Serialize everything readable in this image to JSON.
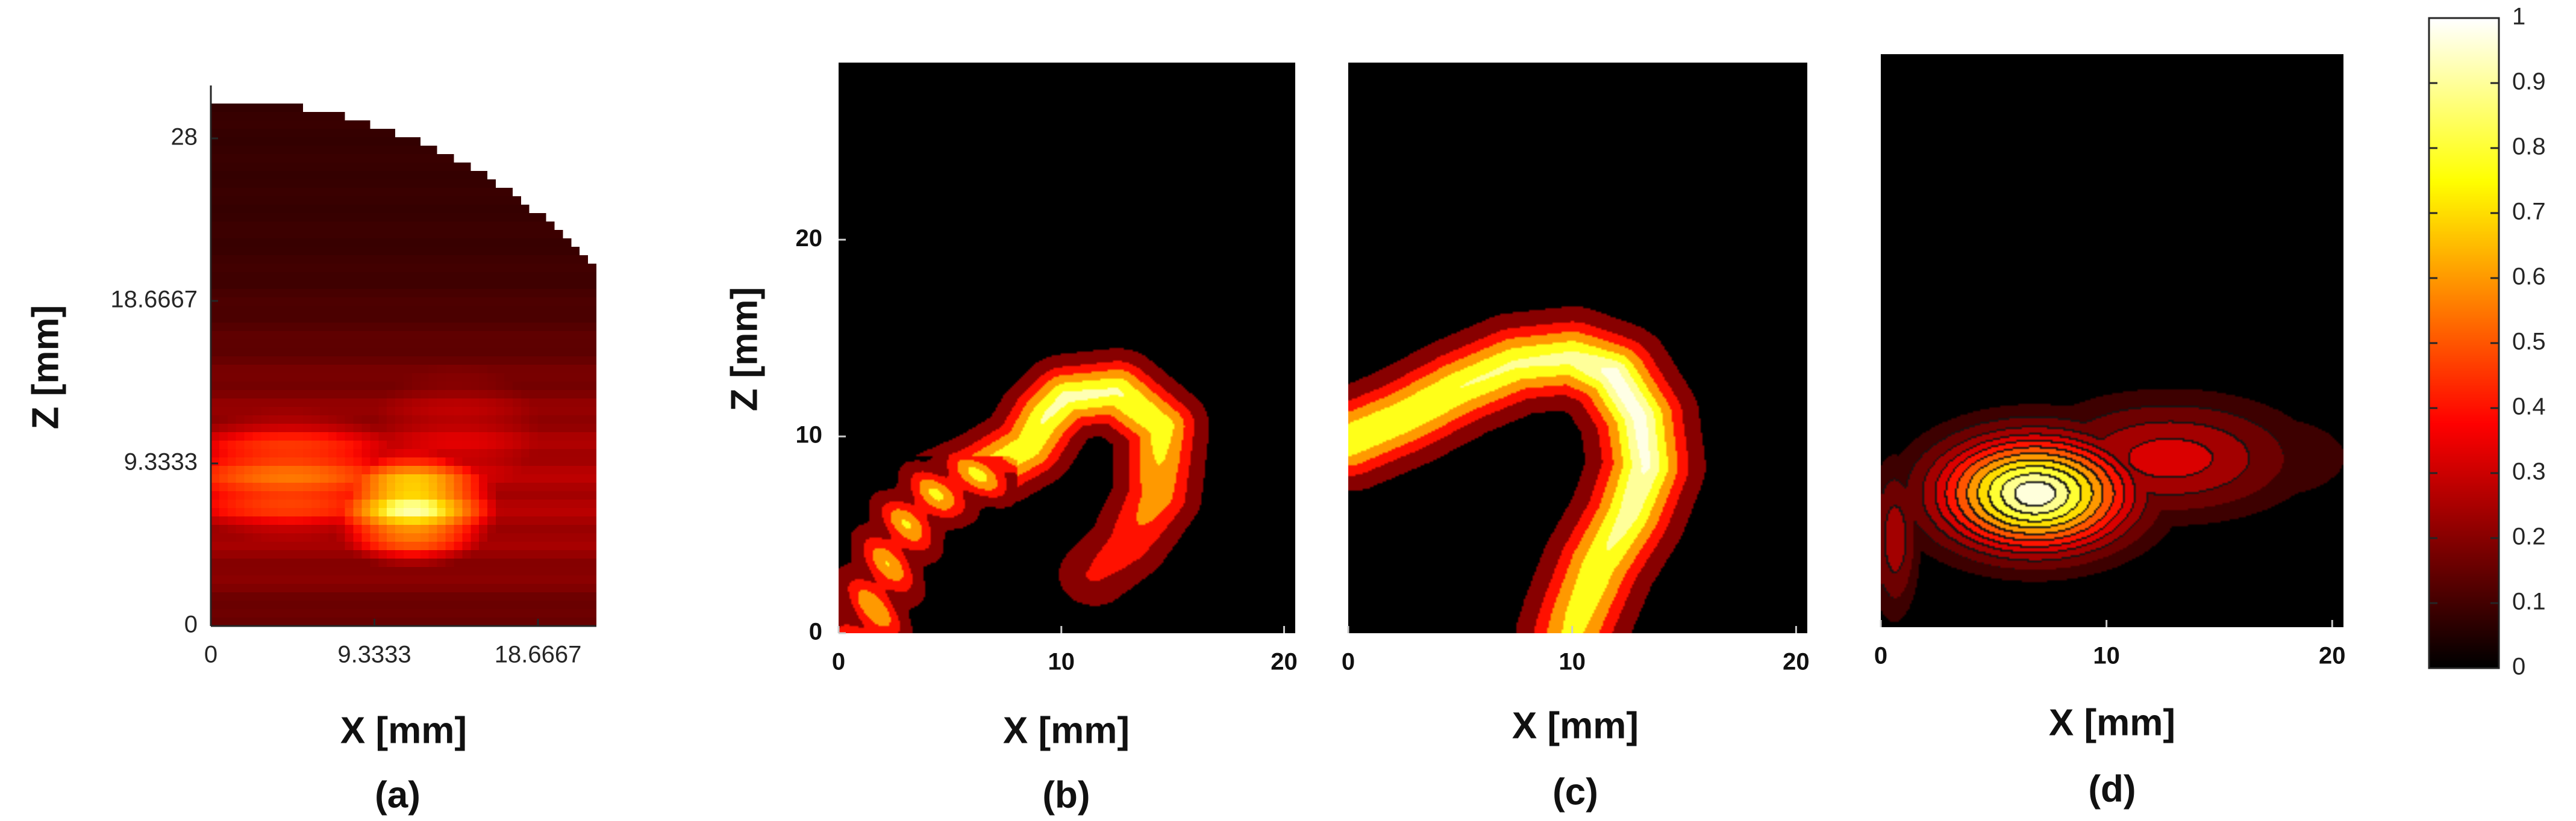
{
  "chart_data": [
    {
      "type": "heatmap",
      "panel_label": "(a)",
      "xlabel": "X [mm]",
      "ylabel": "Z [mm]",
      "xlim": [
        0,
        22
      ],
      "ylim": [
        0,
        30
      ],
      "x_ticks": [
        0,
        9.3333,
        18.6667
      ],
      "x_tick_labels": [
        "0",
        "9.3333",
        "18.6667"
      ],
      "y_ticks": [
        0,
        9.3333,
        18.6667,
        28
      ],
      "y_tick_labels": [
        "0",
        "9.3333",
        "18.6667",
        "28"
      ],
      "boundary_radius": 28,
      "hotspots": [
        {
          "x": 11.5,
          "z": 7,
          "sx": 3.2,
          "sz": 2.2,
          "value": 0.95
        },
        {
          "x": 4.5,
          "z": 8.5,
          "sx": 6,
          "sz": 2.8,
          "value": 0.6
        },
        {
          "x": 14,
          "z": 10,
          "sx": 6,
          "sz": 4,
          "value": 0.35
        }
      ],
      "grid": false,
      "colormap": "hot"
    },
    {
      "type": "heatmap",
      "panel_label": "(b)",
      "xlabel": "X [mm]",
      "ylabel": "Z [mm]",
      "xlim": [
        0,
        20.5
      ],
      "ylim": [
        0,
        29
      ],
      "x_ticks": [
        0,
        10,
        20
      ],
      "x_tick_labels": [
        "0",
        "10",
        "20"
      ],
      "y_ticks": [
        0,
        10,
        20
      ],
      "y_tick_labels": [
        "0",
        "10",
        "20"
      ],
      "path": [
        [
          1.3,
          0
        ],
        [
          2,
          3
        ],
        [
          3,
          5.5
        ],
        [
          4.5,
          7.2
        ],
        [
          6.5,
          8.2
        ],
        [
          8.5,
          9.5
        ],
        [
          9.3,
          11
        ],
        [
          10.2,
          12
        ],
        [
          12.5,
          12.3
        ],
        [
          14.5,
          10.5
        ],
        [
          14.3,
          7
        ],
        [
          13,
          4.5
        ],
        [
          11.5,
          3
        ]
      ],
      "path_values": [
        0.7,
        0.7,
        0.72,
        0.75,
        0.78,
        0.82,
        0.86,
        0.88,
        0.86,
        0.8,
        0.62,
        0.42,
        0.32
      ],
      "contour_levels": [
        0.1,
        0.3,
        0.5,
        0.7,
        0.85
      ],
      "grid": false,
      "colormap": "hot"
    },
    {
      "type": "heatmap",
      "panel_label": "(c)",
      "xlabel": "X [mm]",
      "ylabel": "",
      "xlim": [
        0,
        20.5
      ],
      "ylim": [
        0,
        29
      ],
      "x_ticks": [
        0,
        10,
        20
      ],
      "x_tick_labels": [
        "0",
        "10",
        "20"
      ],
      "path": [
        [
          0,
          9.8
        ],
        [
          2.5,
          11
        ],
        [
          5,
          12.5
        ],
        [
          7.5,
          13.7
        ],
        [
          10,
          14
        ],
        [
          11.8,
          13.2
        ],
        [
          13,
          11
        ],
        [
          13.3,
          8.5
        ],
        [
          12.5,
          6
        ],
        [
          11.2,
          3.5
        ],
        [
          10.3,
          1
        ],
        [
          10,
          0
        ]
      ],
      "path_values": [
        0.85,
        0.84,
        0.85,
        0.86,
        0.88,
        0.98,
        0.98,
        0.96,
        0.9,
        0.83,
        0.78,
        0.75
      ],
      "contour_levels": [
        0.1,
        0.3,
        0.5,
        0.7,
        0.85,
        0.95
      ],
      "grid": false,
      "colormap": "hot"
    },
    {
      "type": "heatmap",
      "panel_label": "(d)",
      "xlabel": "X [mm]",
      "ylabel": "",
      "xlim": [
        0,
        20.5
      ],
      "ylim": [
        0,
        29
      ],
      "x_ticks": [
        0,
        10,
        20
      ],
      "x_tick_labels": [
        "0",
        "10",
        "20"
      ],
      "hotspots": [
        {
          "x": 6.8,
          "z": 6.8,
          "sx": 2.8,
          "sz": 1.9,
          "value": 0.98
        },
        {
          "x": 12.8,
          "z": 8.6,
          "sx": 3.6,
          "sz": 1.9,
          "value": 0.32
        },
        {
          "x": 17,
          "z": 8.6,
          "sx": 3,
          "sz": 1.7,
          "value": 0.12
        },
        {
          "x": 0.6,
          "z": 4.5,
          "sx": 0.7,
          "sz": 2.5,
          "value": 0.25
        }
      ],
      "contour_levels": [
        0.06,
        0.12,
        0.2,
        0.28,
        0.36,
        0.45,
        0.55,
        0.65,
        0.75,
        0.85,
        0.93
      ],
      "contour_lines": true,
      "grid": false,
      "colormap": "hot"
    },
    {
      "type": "colorbar",
      "range": [
        0,
        1
      ],
      "ticks": [
        0,
        0.1,
        0.2,
        0.3,
        0.4,
        0.5,
        0.6,
        0.7,
        0.8,
        0.9,
        1
      ],
      "tick_labels": [
        "0",
        "0.1",
        "0.2",
        "0.3",
        "0.4",
        "0.5",
        "0.6",
        "0.7",
        "0.8",
        "0.9",
        "1"
      ],
      "colormap": "hot"
    }
  ]
}
